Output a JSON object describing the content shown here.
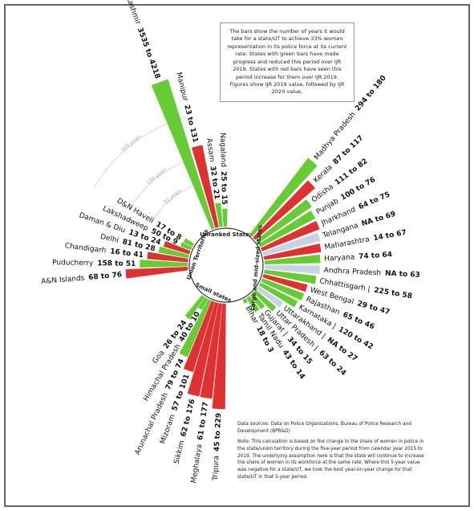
{
  "chart_data": {
    "type": "radial-bar",
    "note": "The bars show the number of years it would take for a state/UT to achieve 33% women representation in its police force at its current rate. States with green bars have made progress and reduced this period over IJR 2019. States with red bars have seen this period increase for them over IJR 2019. Figures show IJR 2019 value, followed by IJR 2020 value.",
    "sources": "Data sources: Data on Police Organizations, Bureau of Police Research and Development (BPR&D)",
    "footnote": "Note: This calculation is based on the change in the share of women in police in the state/union territory during the five-year period from calendar year 2015 to 2019. The underlying assumption here is that the state will continue to increase the share of women in its workforce at the same rate. Where this 5-year value was negative for a state/UT, we took the best year-on-year change for that state/UT in that 5-year period.",
    "ref_circles": [
      {
        "value": 50,
        "label": "50 years"
      },
      {
        "value": 100,
        "label": "100 years"
      },
      {
        "value": 300,
        "label": "300 years"
      }
    ],
    "groups": [
      {
        "name": "Unranked States",
        "categories": [
          "Jammu & Kashmir",
          "Manipur",
          "Assam",
          "Nagaland"
        ],
        "values": [
          4218,
          131,
          21,
          15
        ],
        "value_labels": [
          "3535 to 4218",
          "23 to 131",
          "32 to 21",
          "25 to 15"
        ],
        "colors": [
          "#66cc33",
          "#e03030",
          "#66cc33",
          "#66cc33"
        ]
      },
      {
        "name": "Large and mid-sized states",
        "categories": [
          "Madhya Pradesh",
          "Kerala",
          "Odisha",
          "Punjab",
          "Jharkhand",
          "Telangana",
          "Maharashtra",
          "Haryana",
          "Andhra Pradesh",
          "Chhattisgarh |",
          "West Bengal",
          "Rajasthan",
          "Karnataka |",
          "Uttarakhand |",
          "Uttar Pradesh |",
          "Gujarat |",
          "Tamil Nadu",
          "Bihar"
        ],
        "values": [
          180,
          117,
          82,
          76,
          75,
          69,
          67,
          64,
          63,
          58,
          47,
          46,
          42,
          27,
          24,
          15,
          14,
          3
        ],
        "value_labels": [
          "294 to 180",
          "87 to 117",
          "111 to 82",
          "100 to 76",
          "64 to 75",
          "NA to 69",
          "14 to 67",
          "74 to 64",
          "NA to 63",
          "225 to 58",
          "29 to 47",
          "65 to 46",
          "120 to 42",
          "NA to 27",
          "63 to 24",
          "34 to 15",
          "43 to 14",
          "18 to 3"
        ],
        "colors": [
          "#66cc33",
          "#e03030",
          "#66cc33",
          "#66cc33",
          "#e03030",
          "#c8d2e0",
          "#e03030",
          "#66cc33",
          "#c8d2e0",
          "#66cc33",
          "#e03030",
          "#66cc33",
          "#66cc33",
          "#c8d2e0",
          "#66cc33",
          "#66cc33",
          "#66cc33",
          "#66cc33"
        ]
      },
      {
        "name": "Small states",
        "categories": [
          "Tripura",
          "Meghalaya",
          "Sikkim",
          "Mizoram",
          "Arunachal Pradesh",
          "Himachal Pradesh",
          "Goa"
        ],
        "values": [
          229,
          177,
          176,
          101,
          74,
          10,
          24
        ],
        "value_labels": [
          "45 to 229",
          "61 to 177",
          "62 to 176",
          "57 to 101",
          "79 to 74",
          "40 to 10",
          "26 to 24"
        ],
        "colors": [
          "#e03030",
          "#e03030",
          "#e03030",
          "#e03030",
          "#66cc33",
          "#66cc33",
          "#66cc33"
        ]
      },
      {
        "name": "Union Territories",
        "categories": [
          "A&N Islands",
          "Puducherry",
          "Chandigarh",
          "Delhi",
          "Daman & Diu",
          "Lakshadweep",
          "D&N Haveli"
        ],
        "values": [
          76,
          51,
          41,
          28,
          24,
          9,
          8
        ],
        "value_labels": [
          "68 to 76",
          "158 to 51",
          "16 to 41",
          "81 to 28",
          "13 to 24",
          "50 to 9",
          "17 to 8"
        ],
        "colors": [
          "#e03030",
          "#66cc33",
          "#e03030",
          "#66cc33",
          "#e03030",
          "#66cc33",
          "#66cc33"
        ]
      }
    ]
  }
}
